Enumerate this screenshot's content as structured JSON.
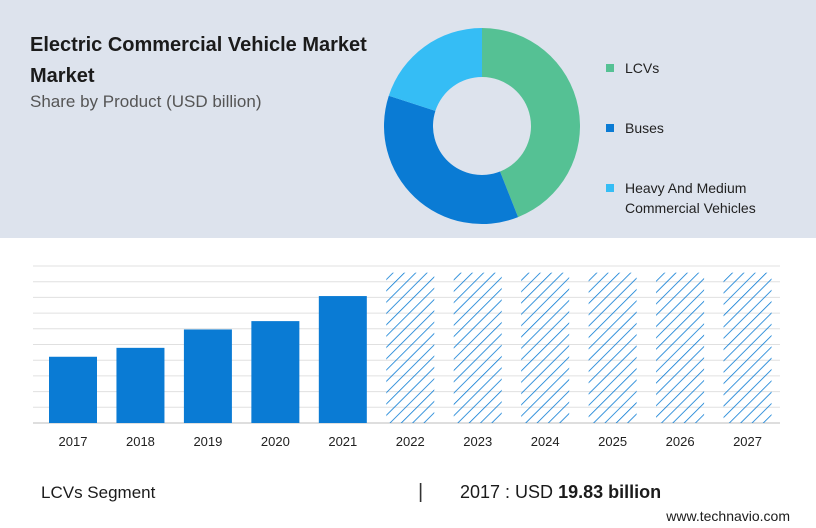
{
  "header": {
    "title": "Electric Commercial Vehicle Market Market",
    "subtitle": "Share by Product (USD billion)"
  },
  "footer": {
    "segment_label": "LCVs Segment",
    "divider": "|",
    "year_prefix": "2017 : USD",
    "value": "19.83 billion",
    "site": "www.technavio.com"
  },
  "colors": {
    "panel_bg": "#dde3ed",
    "bar_solid": "#0a7bd4",
    "bar_hatch": "#0a7bd4",
    "lcvs": "#55c194",
    "buses": "#0a7bd4",
    "heavy_medium": "#35bdf5"
  },
  "chart_data": [
    {
      "type": "pie",
      "subtype": "donut",
      "labels": [
        "LCVs",
        "Buses",
        "Heavy And Medium Commercial Vehicles"
      ],
      "values": [
        44,
        36,
        20
      ],
      "colors": [
        "#55c194",
        "#0a7bd4",
        "#35bdf5"
      ],
      "legend": "right"
    },
    {
      "type": "bar",
      "categories": [
        "2017",
        "2018",
        "2019",
        "2020",
        "2021",
        "2022",
        "2023",
        "2024",
        "2025",
        "2026",
        "2027"
      ],
      "values": [
        19.83,
        22.5,
        28.0,
        30.5,
        38.0,
        null,
        null,
        null,
        null,
        null,
        null
      ],
      "forecast_hatched": [
        false,
        false,
        false,
        false,
        false,
        true,
        true,
        true,
        true,
        true,
        true
      ],
      "forecast_height": 45.0,
      "ylim": [
        0,
        47
      ],
      "grid": true,
      "yaxis_labels": false
    }
  ]
}
